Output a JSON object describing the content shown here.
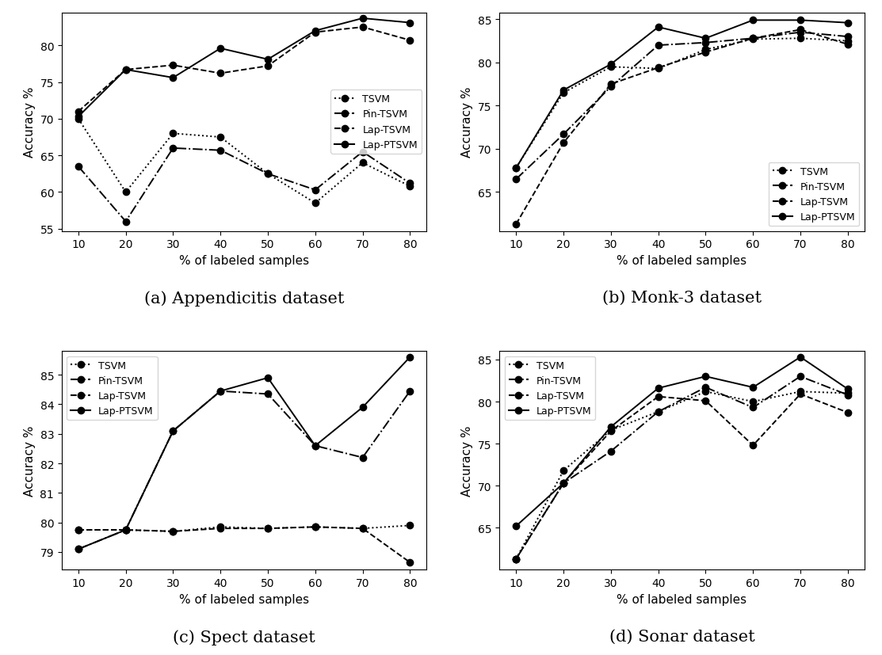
{
  "chart_data": [
    {
      "type": "line",
      "title": "(a) Appendicitis dataset",
      "x_label": "% of labeled samples",
      "y_label": "Accuracy %",
      "x": [
        10,
        20,
        30,
        40,
        50,
        60,
        70,
        80
      ],
      "xlim": [
        6.5,
        83.5
      ],
      "xticks": [
        10,
        20,
        30,
        40,
        50,
        60,
        70,
        80
      ],
      "ylim": [
        54.7,
        84.5
      ],
      "yticks": [
        55,
        60,
        65,
        70,
        75,
        80
      ],
      "legend": "center right",
      "grid": false,
      "series": [
        {
          "name": "TSVM",
          "color": "#000000",
          "marker": "o",
          "line_style": "dotted",
          "values": [
            70.0,
            60.0,
            68.0,
            67.5,
            62.5,
            58.5,
            64.0,
            60.8
          ]
        },
        {
          "name": "Pin-TSVM",
          "color": "#000000",
          "marker": "o",
          "line_style": "dashdot",
          "values": [
            63.5,
            56.0,
            66.0,
            65.7,
            62.5,
            60.3,
            65.5,
            61.2
          ]
        },
        {
          "name": "Lap-TSVM",
          "color": "#000000",
          "marker": "o",
          "line_style": "dashed",
          "values": [
            71.0,
            76.7,
            77.3,
            76.2,
            77.2,
            81.8,
            82.5,
            80.7
          ]
        },
        {
          "name": "Lap-PTSVM",
          "color": "#000000",
          "marker": "o",
          "line_style": "solid",
          "values": [
            70.3,
            76.7,
            75.6,
            79.6,
            78.1,
            82.0,
            83.7,
            83.1
          ]
        }
      ]
    },
    {
      "type": "line",
      "title": "(b) Monk-3 dataset",
      "x_label": "% of labeled samples",
      "y_label": "Accuracy %",
      "x": [
        10,
        20,
        30,
        40,
        50,
        60,
        70,
        80
      ],
      "xlim": [
        6.5,
        83.5
      ],
      "xticks": [
        10,
        20,
        30,
        40,
        50,
        60,
        70,
        80
      ],
      "ylim": [
        60.5,
        85.8
      ],
      "yticks": [
        65,
        70,
        75,
        80,
        85
      ],
      "legend": "lower right",
      "grid": false,
      "series": [
        {
          "name": "TSVM",
          "color": "#000000",
          "marker": "o",
          "line_style": "dotted",
          "values": [
            67.8,
            76.5,
            79.5,
            79.3,
            81.5,
            82.7,
            82.8,
            82.5
          ]
        },
        {
          "name": "Pin-TSVM",
          "color": "#000000",
          "marker": "o",
          "line_style": "dashdot",
          "values": [
            66.5,
            71.7,
            77.2,
            82.0,
            82.3,
            82.8,
            83.5,
            83.0
          ]
        },
        {
          "name": "Lap-TSVM",
          "color": "#000000",
          "marker": "o",
          "line_style": "dashed",
          "values": [
            61.3,
            70.7,
            77.5,
            79.4,
            81.2,
            82.8,
            83.8,
            82.1
          ]
        },
        {
          "name": "Lap-PTSVM",
          "color": "#000000",
          "marker": "o",
          "line_style": "solid",
          "values": [
            67.8,
            76.8,
            79.8,
            84.1,
            82.8,
            84.9,
            84.9,
            84.6
          ]
        }
      ]
    },
    {
      "type": "line",
      "title": "(c) Spect dataset",
      "x_label": "% of labeled samples",
      "y_label": "Accuracy %",
      "x": [
        10,
        20,
        30,
        40,
        50,
        60,
        70,
        80
      ],
      "xlim": [
        6.5,
        83.5
      ],
      "xticks": [
        10,
        20,
        30,
        40,
        50,
        60,
        70,
        80
      ],
      "ylim": [
        78.4,
        85.8
      ],
      "yticks": [
        79,
        80,
        81,
        82,
        83,
        84,
        85
      ],
      "legend": "upper left",
      "grid": false,
      "series": [
        {
          "name": "TSVM",
          "color": "#000000",
          "marker": "o",
          "line_style": "dotted",
          "values": [
            79.75,
            79.75,
            79.7,
            79.85,
            79.8,
            79.85,
            79.8,
            79.9
          ]
        },
        {
          "name": "Pin-TSVM",
          "color": "#000000",
          "marker": "o",
          "line_style": "dashdot",
          "values": [
            79.1,
            79.75,
            83.1,
            84.45,
            84.35,
            82.6,
            82.2,
            84.45
          ]
        },
        {
          "name": "Lap-TSVM",
          "color": "#000000",
          "marker": "o",
          "line_style": "dashed",
          "values": [
            79.75,
            79.75,
            79.7,
            79.8,
            79.8,
            79.85,
            79.8,
            78.65
          ]
        },
        {
          "name": "Lap-PTSVM",
          "color": "#000000",
          "marker": "o",
          "line_style": "solid",
          "values": [
            79.1,
            79.75,
            83.1,
            84.45,
            84.9,
            82.6,
            83.9,
            85.6
          ]
        }
      ]
    },
    {
      "type": "line",
      "title": "(d) Sonar dataset",
      "x_label": "% of labeled samples",
      "y_label": "Accuracy %",
      "x": [
        10,
        20,
        30,
        40,
        50,
        60,
        70,
        80
      ],
      "xlim": [
        6.5,
        83.5
      ],
      "xticks": [
        10,
        20,
        30,
        40,
        50,
        60,
        70,
        80
      ],
      "ylim": [
        60.0,
        86.0
      ],
      "yticks": [
        65,
        70,
        75,
        80,
        85
      ],
      "legend": "upper left",
      "grid": false,
      "series": [
        {
          "name": "TSVM",
          "color": "#000000",
          "marker": "o",
          "line_style": "dotted",
          "values": [
            61.3,
            71.8,
            76.6,
            78.8,
            81.2,
            80.0,
            81.2,
            81.0
          ]
        },
        {
          "name": "Pin-TSVM",
          "color": "#000000",
          "marker": "o",
          "line_style": "dashdot",
          "values": [
            61.3,
            70.3,
            74.1,
            78.8,
            81.7,
            79.3,
            83.0,
            80.8
          ]
        },
        {
          "name": "Lap-TSVM",
          "color": "#000000",
          "marker": "o",
          "line_style": "dashed",
          "values": [
            61.3,
            70.3,
            76.5,
            80.6,
            80.1,
            74.8,
            80.9,
            78.7
          ]
        },
        {
          "name": "Lap-PTSVM",
          "color": "#000000",
          "marker": "o",
          "line_style": "solid",
          "values": [
            65.2,
            70.3,
            77.0,
            81.6,
            83.0,
            81.7,
            85.3,
            81.5
          ]
        }
      ]
    }
  ]
}
